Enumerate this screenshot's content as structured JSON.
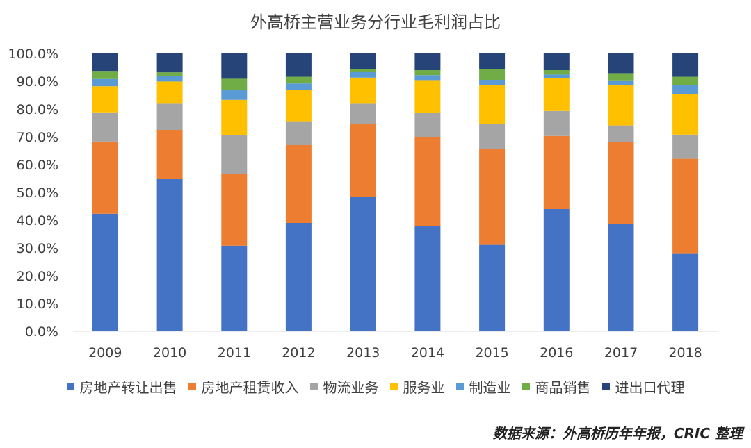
{
  "chart_data": {
    "type": "bar",
    "stacked": true,
    "title": "外高桥主营业务分行业毛利润占比",
    "xlabel": "",
    "ylabel": "",
    "categories": [
      "2009",
      "2010",
      "2011",
      "2012",
      "2013",
      "2014",
      "2015",
      "2016",
      "2017",
      "2018"
    ],
    "ylim": [
      0,
      100
    ],
    "y_ticks": [
      "0.0%",
      "10.0%",
      "20.0%",
      "30.0%",
      "40.0%",
      "50.0%",
      "60.0%",
      "70.0%",
      "80.0%",
      "90.0%",
      "100.0%"
    ],
    "grid": false,
    "legend_position": "bottom",
    "series": [
      {
        "name": "房地产转让出售",
        "color": "#4472C4",
        "values": [
          42.3,
          55.0,
          30.8,
          39.0,
          48.3,
          37.8,
          31.1,
          44.0,
          38.5,
          28.1
        ]
      },
      {
        "name": "房地产租赁收入",
        "color": "#ED7D31",
        "values": [
          26.0,
          17.5,
          25.7,
          28.0,
          26.2,
          32.2,
          34.4,
          26.3,
          29.6,
          34.0
        ]
      },
      {
        "name": "物流业务",
        "color": "#A5A5A5",
        "values": [
          10.5,
          9.4,
          14.1,
          8.6,
          7.4,
          8.5,
          9.0,
          9.0,
          6.0,
          8.7
        ]
      },
      {
        "name": "服务业",
        "color": "#FFC000",
        "values": [
          9.4,
          8.0,
          12.7,
          11.2,
          9.4,
          11.9,
          14.2,
          11.8,
          14.4,
          14.5
        ]
      },
      {
        "name": "制造业",
        "color": "#5B9BD5",
        "values": [
          2.6,
          1.9,
          3.5,
          2.4,
          2.0,
          1.8,
          1.8,
          1.3,
          1.8,
          3.2
        ]
      },
      {
        "name": "商品销售",
        "color": "#70AD47",
        "values": [
          2.9,
          1.4,
          4.1,
          2.4,
          1.2,
          1.8,
          3.9,
          1.6,
          2.6,
          3.1
        ]
      },
      {
        "name": "进出口代理",
        "color": "#264478",
        "values": [
          6.3,
          6.8,
          9.1,
          8.4,
          5.5,
          6.0,
          5.6,
          6.0,
          7.1,
          8.4
        ]
      }
    ]
  },
  "source_note": "数据来源：外高桥历年年报，CRIC 整理"
}
